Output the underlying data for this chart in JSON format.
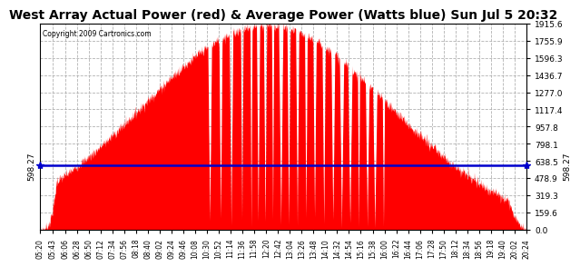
{
  "title": "West Array Actual Power (red) & Average Power (Watts blue) Sun Jul 5 20:32",
  "copyright": "Copyright 2009 Cartronics.com",
  "average_power": 598.27,
  "y_max": 1915.6,
  "y_ticks": [
    0.0,
    159.6,
    319.3,
    478.9,
    638.5,
    798.1,
    957.8,
    1117.4,
    1277.0,
    1436.7,
    1596.3,
    1755.9,
    1915.6
  ],
  "background_color": "#ffffff",
  "fill_color": "#ff0000",
  "avg_line_color": "#0000cc",
  "grid_color": "#aaaaaa",
  "title_fontsize": 10,
  "x_labels": [
    "05:20",
    "05:43",
    "06:06",
    "06:28",
    "06:50",
    "07:12",
    "07:34",
    "07:56",
    "08:18",
    "08:40",
    "09:02",
    "09:24",
    "09:46",
    "10:08",
    "10:30",
    "10:52",
    "11:14",
    "11:36",
    "11:58",
    "12:20",
    "12:42",
    "13:04",
    "13:26",
    "13:48",
    "14:10",
    "14:32",
    "14:54",
    "15:16",
    "15:38",
    "16:00",
    "16:22",
    "16:44",
    "17:06",
    "17:28",
    "17:50",
    "18:12",
    "18:34",
    "18:56",
    "19:18",
    "19:40",
    "20:02",
    "20:24"
  ]
}
